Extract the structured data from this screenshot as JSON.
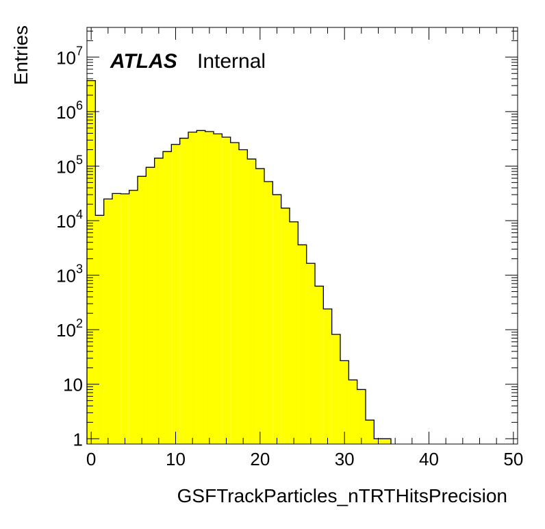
{
  "chart_data": {
    "type": "histogram",
    "title": "",
    "xlabel": "GSFTrackParticles_nTRTHitsPrecision",
    "ylabel": "Entries",
    "xlim": [
      -0.5,
      50.5
    ],
    "ylim": [
      0.8,
      35000000
    ],
    "y_scale": "log",
    "grid": false,
    "legend": "none",
    "fill_color": "#ffff00",
    "line_color": "#000000",
    "x_ticks": [
      0,
      10,
      20,
      30,
      40,
      50
    ],
    "x_tick_labels": [
      "0",
      "10",
      "20",
      "30",
      "40",
      "50"
    ],
    "y_ticks": [
      1,
      10,
      100,
      1000,
      10000,
      100000,
      1000000,
      10000000
    ],
    "y_tick_labels": [
      {
        "base": "1",
        "exp": ""
      },
      {
        "base": "10",
        "exp": ""
      },
      {
        "base": "10",
        "exp": "2"
      },
      {
        "base": "10",
        "exp": "3"
      },
      {
        "base": "10",
        "exp": "4"
      },
      {
        "base": "10",
        "exp": "5"
      },
      {
        "base": "10",
        "exp": "6"
      },
      {
        "base": "10",
        "exp": "7"
      }
    ],
    "bin_width": 1,
    "bin_centers": [
      0,
      1,
      2,
      3,
      4,
      5,
      6,
      7,
      8,
      9,
      10,
      11,
      12,
      13,
      14,
      15,
      16,
      17,
      18,
      19,
      20,
      21,
      22,
      23,
      24,
      25,
      26,
      27,
      28,
      29,
      30,
      31,
      32,
      33,
      34,
      35
    ],
    "values": [
      3700000,
      12500,
      25000,
      31500,
      31000,
      36000,
      65000,
      95000,
      140000,
      185000,
      250000,
      325000,
      420000,
      450000,
      430000,
      390000,
      340000,
      270000,
      200000,
      135000,
      90000,
      52000,
      30000,
      17000,
      9500,
      3600,
      1650,
      630,
      240,
      82,
      27,
      12,
      8,
      2.2,
      1,
      1
    ]
  },
  "annotation": {
    "atlas": "ATLAS",
    "internal": "Internal"
  }
}
